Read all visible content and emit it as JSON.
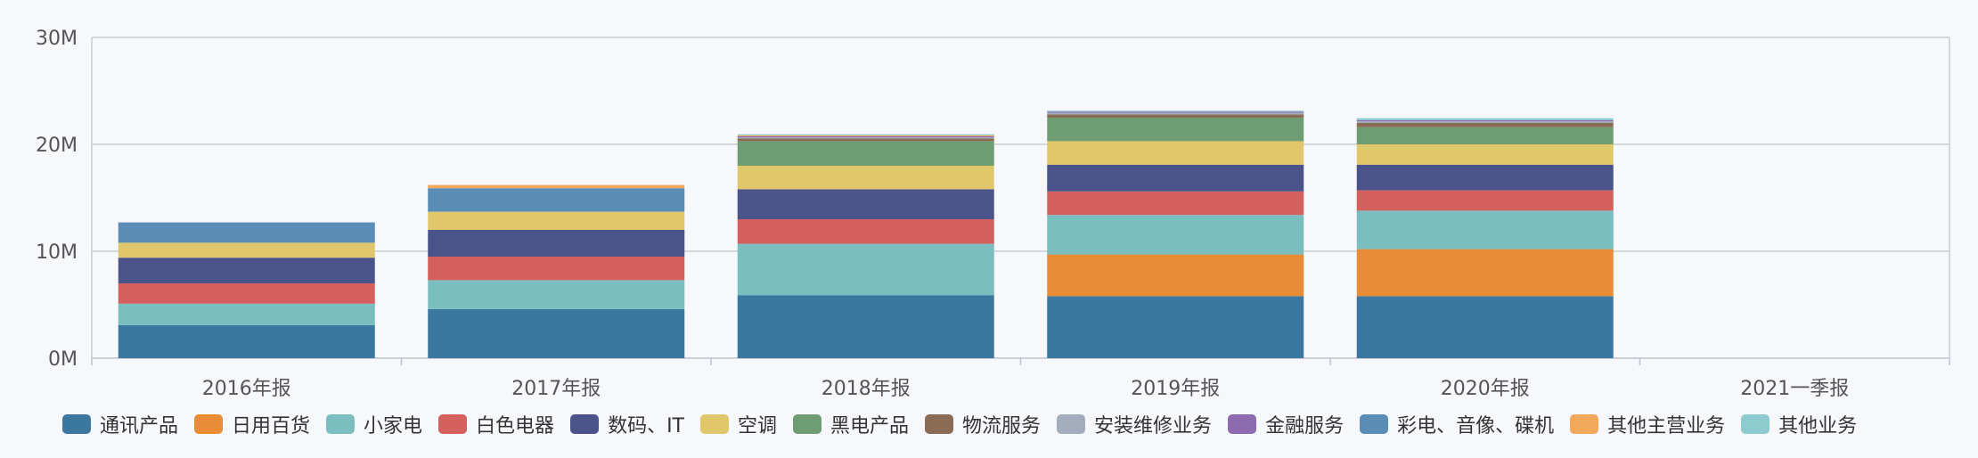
{
  "chart_data": {
    "type": "bar",
    "stacked": true,
    "categories": [
      "2016年报",
      "2017年报",
      "2018年报",
      "2019年报",
      "2020年报",
      "2021一季报"
    ],
    "y_ticks": [
      "0M",
      "10M",
      "20M",
      "30M"
    ],
    "ylim": [
      0,
      30
    ],
    "y_unit": "M",
    "grid": true,
    "legend_position": "bottom",
    "series": [
      {
        "name": "通讯产品",
        "color": "#3c77a0",
        "values": [
          3.1,
          4.6,
          5.9,
          5.8,
          5.8,
          null
        ]
      },
      {
        "name": "日用百货",
        "color": "#e98c36",
        "values": [
          0,
          0,
          0,
          3.9,
          4.4,
          null
        ]
      },
      {
        "name": "小家电",
        "color": "#7abec0",
        "values": [
          2.0,
          2.7,
          4.8,
          3.7,
          3.6,
          null
        ]
      },
      {
        "name": "白色电器",
        "color": "#d3605d",
        "values": [
          1.9,
          2.2,
          2.3,
          2.2,
          1.9,
          null
        ]
      },
      {
        "name": "数码、IT",
        "color": "#4b548a",
        "values": [
          2.4,
          2.5,
          2.8,
          2.5,
          2.4,
          null
        ]
      },
      {
        "name": "空调",
        "color": "#e1c76b",
        "values": [
          1.4,
          1.7,
          2.2,
          2.2,
          1.9,
          null
        ]
      },
      {
        "name": "黑电产品",
        "color": "#6f9d73",
        "values": [
          0,
          0,
          2.3,
          2.2,
          1.6,
          null
        ]
      },
      {
        "name": "物流服务",
        "color": "#8a6b55",
        "values": [
          0,
          0,
          0.25,
          0.3,
          0.4,
          null
        ]
      },
      {
        "name": "安装维修业务",
        "color": "#a3adbd",
        "values": [
          0,
          0,
          0.1,
          0.15,
          0.15,
          null
        ]
      },
      {
        "name": "金融服务",
        "color": "#8e6bb0",
        "values": [
          0,
          0,
          0.1,
          0.1,
          0.1,
          null
        ]
      },
      {
        "name": "彩电、音像、碟机",
        "color": "#5a8db5",
        "values": [
          1.9,
          2.2,
          0,
          0,
          0,
          null
        ]
      },
      {
        "name": "其他主营业务",
        "color": "#f2a95c",
        "values": [
          0,
          0.3,
          0.1,
          0,
          0,
          null
        ]
      },
      {
        "name": "其他业务",
        "color": "#8ecbce",
        "values": [
          0,
          0,
          0.1,
          0.1,
          0.2,
          null
        ]
      }
    ]
  }
}
